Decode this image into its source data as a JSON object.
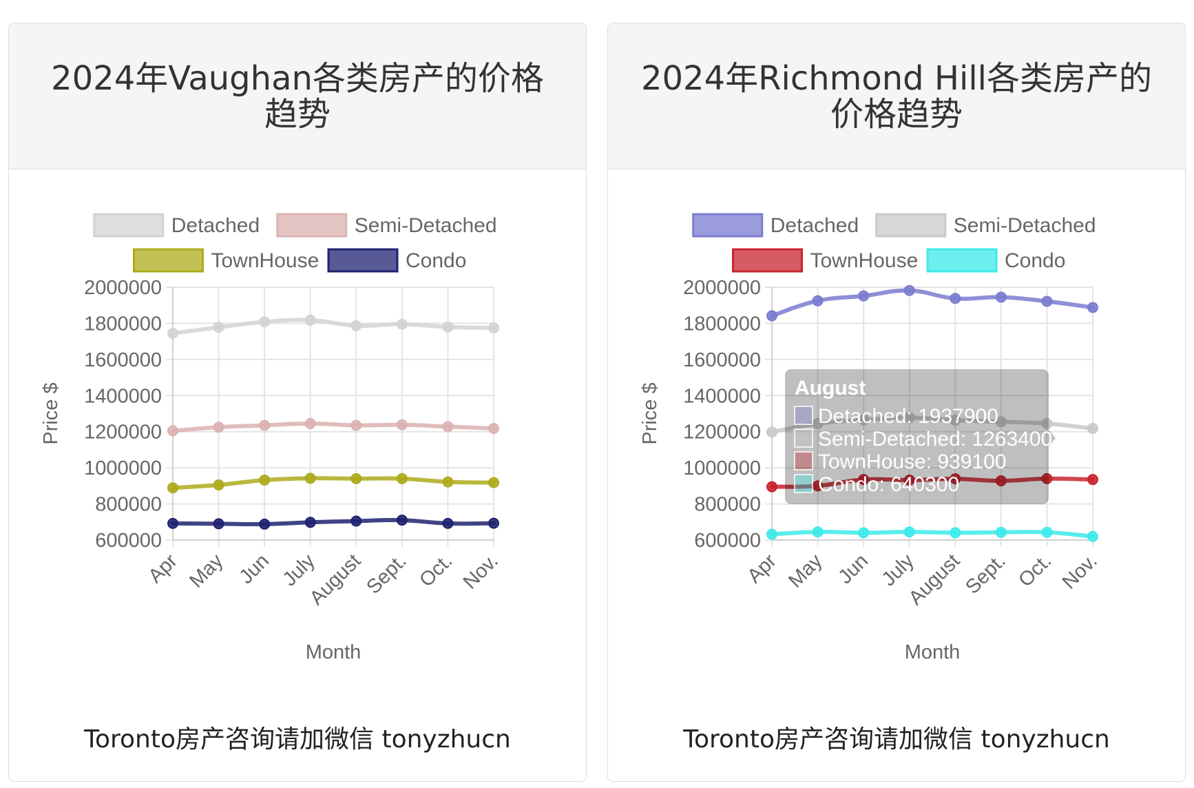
{
  "footer_text": "Toronto房产咨询请加微信 tonyzhucn",
  "chart_data": [
    {
      "type": "line",
      "title": "2024年Vaughan各类房产的价格趋势",
      "xlabel": "Month",
      "ylabel": "Price $",
      "ylim": [
        600000,
        2000000
      ],
      "ytick_step": 200000,
      "grid": true,
      "legend_position": "top",
      "categories": [
        "Apr",
        "May",
        "Jun",
        "July",
        "August",
        "Sept.",
        "Oct.",
        "Nov."
      ],
      "series": [
        {
          "name": "Detached",
          "color": "#d3d3d3",
          "values": [
            1745000,
            1778000,
            1808000,
            1818000,
            1787000,
            1795000,
            1780000,
            1775000
          ]
        },
        {
          "name": "Semi-Detached",
          "color": "#dbb2b2",
          "values": [
            1205000,
            1225000,
            1235000,
            1245000,
            1235000,
            1238000,
            1228000,
            1218000
          ]
        },
        {
          "name": "TownHouse",
          "color": "#aeaa1c",
          "values": [
            889000,
            905000,
            932000,
            942000,
            940000,
            940000,
            922000,
            918000
          ]
        },
        {
          "name": "Condo",
          "color": "#1f2370",
          "values": [
            692000,
            690000,
            688000,
            698000,
            705000,
            710000,
            692000,
            693000
          ]
        }
      ]
    },
    {
      "type": "line",
      "title": "2024年Richmond Hill各类房产的价格趋势",
      "xlabel": "Month",
      "ylabel": "Price $",
      "ylim": [
        600000,
        2000000
      ],
      "ytick_step": 200000,
      "grid": true,
      "legend_position": "top",
      "categories": [
        "Apr",
        "May",
        "Jun",
        "July",
        "August",
        "Sept.",
        "Oct.",
        "Nov."
      ],
      "series": [
        {
          "name": "Detached",
          "color": "#7b7bd0",
          "values": [
            1842000,
            1925000,
            1952000,
            1982000,
            1937900,
            1945000,
            1922000,
            1888000
          ]
        },
        {
          "name": "Semi-Detached",
          "color": "#c9c9c9",
          "values": [
            1198000,
            1245000,
            1265000,
            1278000,
            1263400,
            1255000,
            1245000,
            1218000
          ]
        },
        {
          "name": "TownHouse",
          "color": "#c9242e",
          "values": [
            895000,
            900000,
            935000,
            932000,
            939100,
            928000,
            940000,
            935000
          ]
        },
        {
          "name": "Condo",
          "color": "#3deaea",
          "values": [
            632000,
            645000,
            640000,
            645000,
            640300,
            643000,
            643000,
            620000
          ]
        }
      ],
      "tooltip": {
        "title": "August",
        "lines": [
          "Detached: 1937900",
          "Semi-Detached: 1263400",
          "TownHouse: 939100",
          "Condo: 640300"
        ]
      }
    }
  ]
}
